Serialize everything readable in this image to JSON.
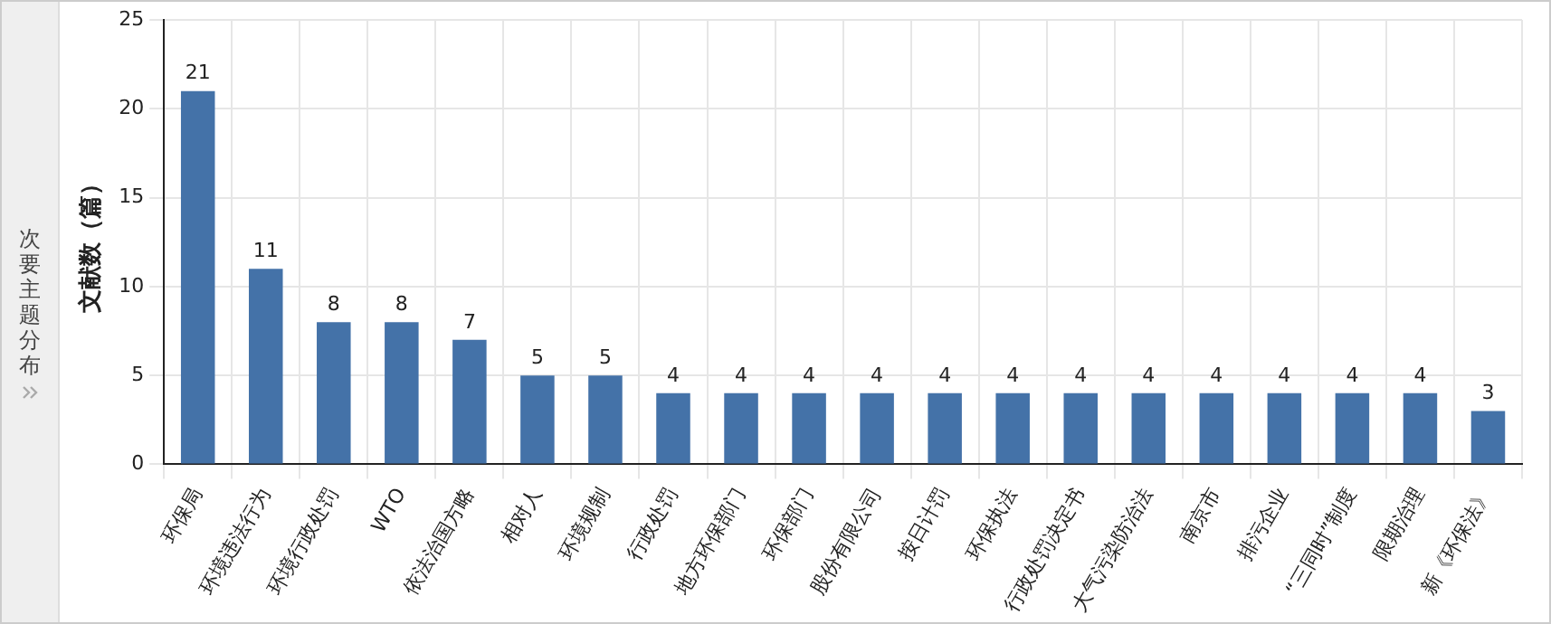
{
  "chart_data": {
    "type": "bar",
    "title": "次要主题分布",
    "ylabel": "文献数（篇）",
    "categories": [
      "环保局",
      "环境违法行为",
      "环境行政处罚",
      "WTO",
      "依法治国方略",
      "相对人",
      "环境规制",
      "行政处罚",
      "地方环保部门",
      "环保部门",
      "股份有限公司",
      "按日计罚",
      "环保执法",
      "行政处罚决定书",
      "大气污染防治法",
      "南京市",
      "排污企业",
      "“三同时”制度",
      "限期治理",
      "新《环保法》"
    ],
    "values": [
      21,
      11,
      8,
      8,
      7,
      5,
      5,
      4,
      4,
      4,
      4,
      4,
      4,
      4,
      4,
      4,
      4,
      4,
      4,
      3
    ],
    "color": "#4472a8",
    "ylim": [
      0,
      25
    ],
    "yticks": [
      0,
      5,
      10,
      15,
      20,
      25
    ],
    "grid": true,
    "data_labels": true,
    "legend": false
  }
}
